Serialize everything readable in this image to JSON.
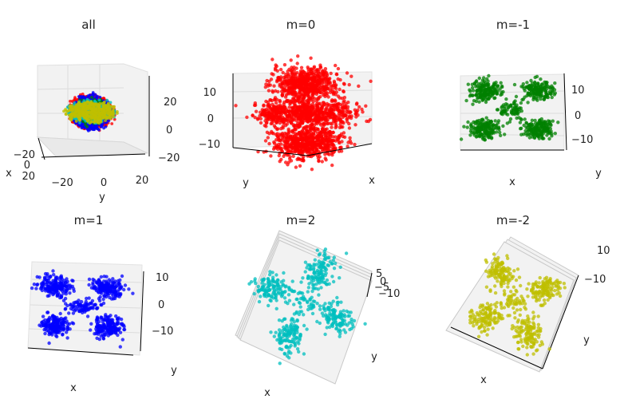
{
  "figure": {
    "description_free": true
  },
  "chart_data": [
    {
      "type": "scatter",
      "title": "all",
      "xlabel": "x",
      "ylabel": "y",
      "zlabel": "",
      "xticks": [
        "−20",
        "0",
        "20"
      ],
      "yticks": [
        "−20",
        "0",
        "20"
      ],
      "zticks": [
        "20",
        "0",
        "−20"
      ],
      "xlim": [
        -25,
        25
      ],
      "ylim": [
        -25,
        25
      ],
      "zlim": [
        -25,
        25
      ],
      "series": [
        {
          "name": "m=0",
          "color": "#ff0000"
        },
        {
          "name": "m=-1",
          "color": "#008000"
        },
        {
          "name": "m=1",
          "color": "#0000ff"
        },
        {
          "name": "m=2",
          "color": "#00bfbf"
        },
        {
          "name": "m=-2",
          "color": "#bfbf00"
        }
      ]
    },
    {
      "type": "scatter",
      "title": "m=0",
      "xlabel": "x",
      "ylabel": "y",
      "zlabel": "",
      "xticks": [],
      "yticks": [],
      "zticks": [
        "10",
        "0",
        "−10"
      ],
      "zlim": [
        -15,
        15
      ],
      "series": [
        {
          "name": "m=0",
          "color": "#ff0000",
          "lobes": [
            [
              0,
              10
            ],
            [
              0,
              -10
            ],
            [
              -8,
              0
            ],
            [
              8,
              0
            ],
            [
              0,
              0
            ]
          ]
        }
      ]
    },
    {
      "type": "scatter",
      "title": "m=-1",
      "xlabel": "x",
      "ylabel": "y",
      "zlabel": "",
      "xticks": [],
      "yticks": [],
      "zticks": [
        "10",
        "0",
        "−10"
      ],
      "zlim": [
        -15,
        15
      ],
      "series": [
        {
          "name": "m=-1",
          "color": "#008000",
          "lobes": [
            [
              -9,
              9
            ],
            [
              9,
              9
            ],
            [
              -9,
              -9
            ],
            [
              9,
              -9
            ],
            [
              0,
              0
            ]
          ]
        }
      ]
    },
    {
      "type": "scatter",
      "title": "m=1",
      "xlabel": "x",
      "ylabel": "y",
      "zlabel": "",
      "xticks": [],
      "yticks": [],
      "zticks": [
        "10",
        "0",
        "−10"
      ],
      "zlim": [
        -15,
        15
      ],
      "series": [
        {
          "name": "m=1",
          "color": "#0000ff",
          "lobes": [
            [
              -9,
              9
            ],
            [
              9,
              9
            ],
            [
              -9,
              -9
            ],
            [
              9,
              -9
            ],
            [
              0,
              0
            ]
          ]
        }
      ]
    },
    {
      "type": "scatter",
      "title": "m=2",
      "xlabel": "x",
      "ylabel": "y",
      "zlabel": "",
      "xticks": [],
      "yticks": [],
      "zticks": [
        "5",
        "0",
        "−5",
        "−10"
      ],
      "zlim": [
        -12,
        7
      ],
      "series": [
        {
          "name": "m=2",
          "color": "#00bfbf",
          "lobes": [
            [
              -10,
              0
            ],
            [
              10,
              0
            ],
            [
              0,
              10
            ],
            [
              0,
              -10
            ],
            [
              0,
              0
            ]
          ]
        }
      ]
    },
    {
      "type": "scatter",
      "title": "m=-2",
      "xlabel": "x",
      "ylabel": "y",
      "zlabel": "",
      "xticks": [],
      "yticks": [],
      "zticks": [
        "10",
        "−10"
      ],
      "zlim": [
        -12,
        12
      ],
      "series": [
        {
          "name": "m=-2",
          "color": "#bfbf00",
          "lobes": [
            [
              -10,
              0
            ],
            [
              10,
              0
            ],
            [
              0,
              10
            ],
            [
              0,
              -10
            ],
            [
              0,
              0
            ]
          ]
        }
      ]
    }
  ]
}
